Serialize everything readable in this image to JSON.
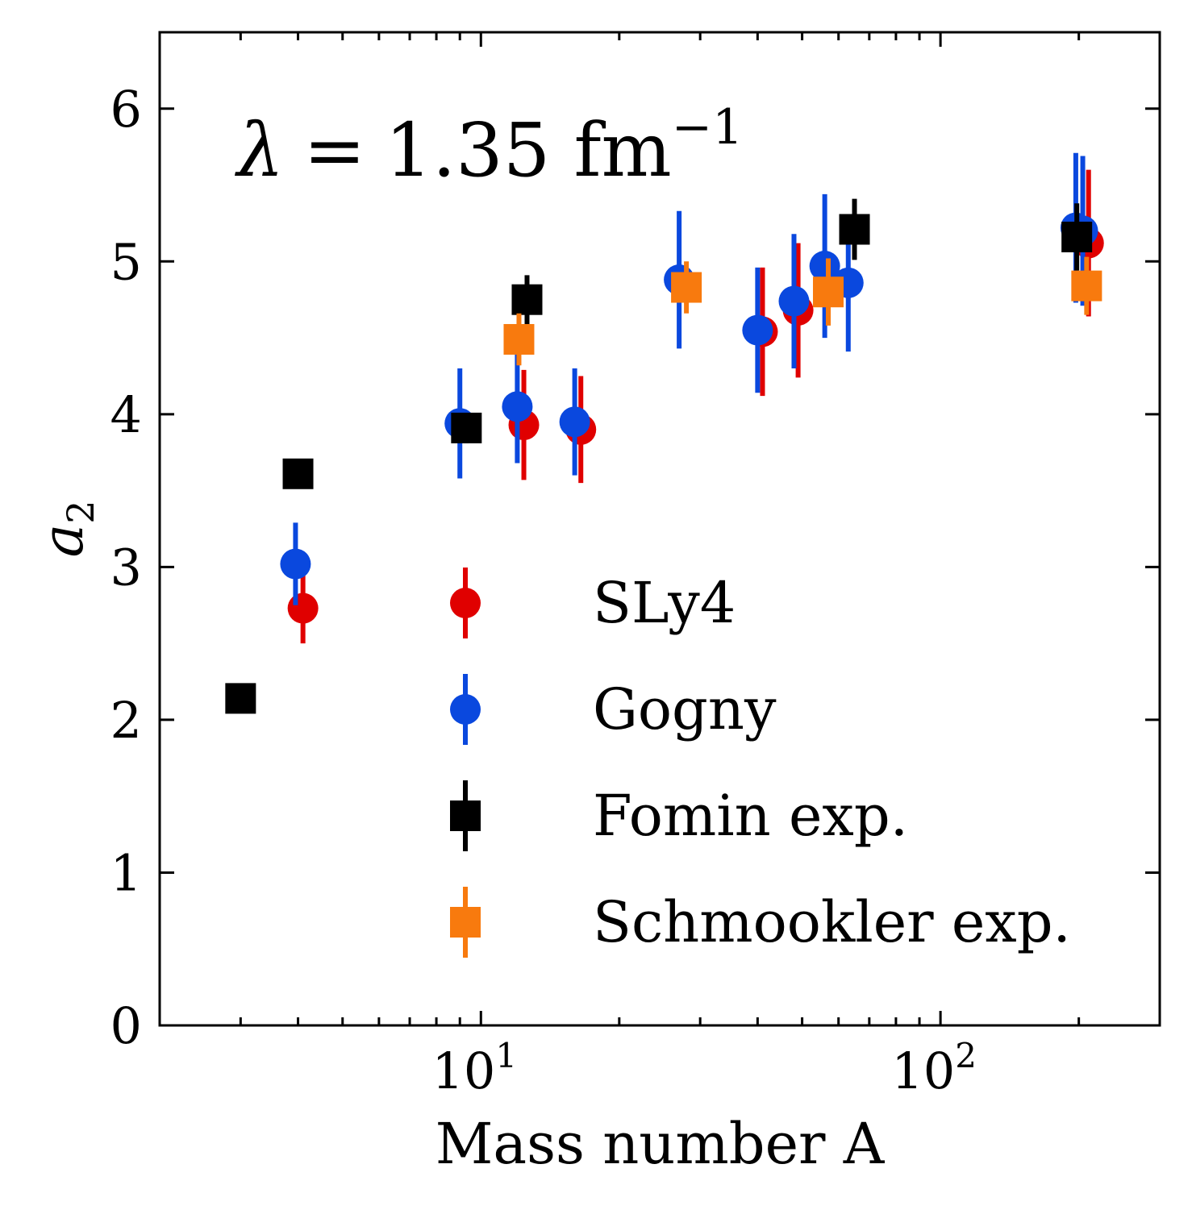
{
  "chart_data": {
    "type": "scatter",
    "title": "",
    "xlabel": "Mass number A",
    "ylabel": "a",
    "ylabel_subscript": "2",
    "xscale": "log",
    "xlim": [
      2,
      300
    ],
    "ylim": [
      0,
      6.5
    ],
    "yticks": [
      0,
      1,
      2,
      3,
      4,
      5,
      6
    ],
    "ytick_labels": [
      "0",
      "1",
      "2",
      "3",
      "4",
      "5",
      "6"
    ],
    "xtick_labels": [
      {
        "value": 10,
        "base": "10",
        "exp": "1"
      },
      {
        "value": 100,
        "base": "10",
        "exp": "2"
      }
    ],
    "grid": false,
    "legend_position": "lower-center",
    "annotation": {
      "symbol": "λ",
      "equals": "=",
      "value": "1.35 fm",
      "superscript": "−1"
    },
    "series": [
      {
        "name": "SLy4",
        "marker": "circle",
        "color": "#e00000",
        "points": [
          {
            "x": 4.1,
            "y": 2.73,
            "err": 0.23
          },
          {
            "x": 12.4,
            "y": 3.93,
            "err": 0.36
          },
          {
            "x": 16.5,
            "y": 3.9,
            "err": 0.35
          },
          {
            "x": 41,
            "y": 4.54,
            "err": 0.42
          },
          {
            "x": 49,
            "y": 4.68,
            "err": 0.44
          },
          {
            "x": 210,
            "y": 5.12,
            "err": 0.48
          }
        ]
      },
      {
        "name": "Gogny",
        "marker": "circle",
        "color": "#0a48de",
        "points": [
          {
            "x": 3.95,
            "y": 3.02,
            "err": 0.27
          },
          {
            "x": 9.0,
            "y": 3.94,
            "err": 0.36
          },
          {
            "x": 12.0,
            "y": 4.05,
            "err": 0.37
          },
          {
            "x": 16.0,
            "y": 3.95,
            "err": 0.35
          },
          {
            "x": 27,
            "y": 4.88,
            "err": 0.45
          },
          {
            "x": 40,
            "y": 4.55,
            "err": 0.41
          },
          {
            "x": 48,
            "y": 4.74,
            "err": 0.44
          },
          {
            "x": 56,
            "y": 4.97,
            "err": 0.47
          },
          {
            "x": 63,
            "y": 4.86,
            "err": 0.45
          },
          {
            "x": 197,
            "y": 5.22,
            "err": 0.49
          },
          {
            "x": 204,
            "y": 5.2,
            "err": 0.49
          }
        ]
      },
      {
        "name": "Fomin exp.",
        "marker": "square",
        "color": "#000000",
        "points": [
          {
            "x": 3.0,
            "y": 2.14,
            "err": 0.04
          },
          {
            "x": 4.0,
            "y": 3.61,
            "err": 0.05
          },
          {
            "x": 9.3,
            "y": 3.91,
            "err": 0.1
          },
          {
            "x": 12.6,
            "y": 4.75,
            "err": 0.16
          },
          {
            "x": 65,
            "y": 5.21,
            "err": 0.2
          },
          {
            "x": 198,
            "y": 5.16,
            "err": 0.22
          }
        ]
      },
      {
        "name": "Schmookler exp.",
        "marker": "square",
        "color": "#f87a0e",
        "points": [
          {
            "x": 12.1,
            "y": 4.49,
            "err": 0.17
          },
          {
            "x": 28,
            "y": 4.83,
            "err": 0.17
          },
          {
            "x": 57,
            "y": 4.8,
            "err": 0.22
          },
          {
            "x": 208,
            "y": 4.84,
            "err": 0.19
          }
        ]
      }
    ]
  }
}
